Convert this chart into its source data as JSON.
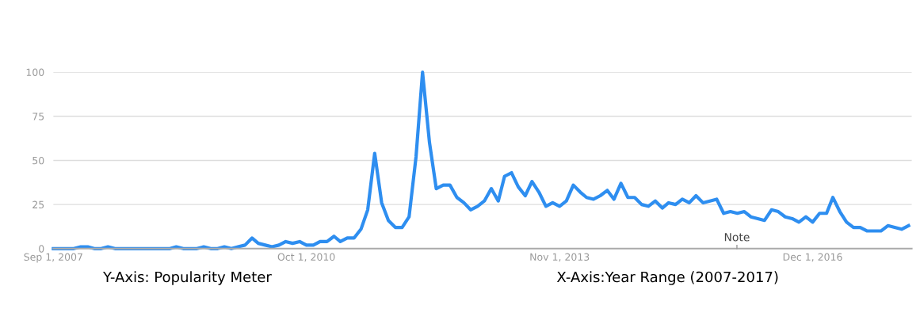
{
  "chart_data": {
    "type": "line",
    "x": [
      "2007-09",
      "2007-10",
      "2007-11",
      "2007-12",
      "2008-01",
      "2008-02",
      "2008-03",
      "2008-04",
      "2008-05",
      "2008-06",
      "2008-07",
      "2008-08",
      "2008-09",
      "2008-10",
      "2008-11",
      "2008-12",
      "2009-01",
      "2009-02",
      "2009-03",
      "2009-04",
      "2009-05",
      "2009-06",
      "2009-07",
      "2009-08",
      "2009-09",
      "2009-10",
      "2009-11",
      "2009-12",
      "2010-01",
      "2010-02",
      "2010-03",
      "2010-04",
      "2010-05",
      "2010-06",
      "2010-07",
      "2010-08",
      "2010-09",
      "2010-10",
      "2010-11",
      "2010-12",
      "2011-01",
      "2011-02",
      "2011-03",
      "2011-04",
      "2011-05",
      "2011-06",
      "2011-07",
      "2011-08",
      "2011-09",
      "2011-10",
      "2011-11",
      "2011-12",
      "2012-01",
      "2012-02",
      "2012-03",
      "2012-04",
      "2012-05",
      "2012-06",
      "2012-07",
      "2012-08",
      "2012-09",
      "2012-10",
      "2012-11",
      "2012-12",
      "2013-01",
      "2013-02",
      "2013-03",
      "2013-04",
      "2013-05",
      "2013-06",
      "2013-07",
      "2013-08",
      "2013-09",
      "2013-10",
      "2013-11",
      "2013-12",
      "2014-01",
      "2014-02",
      "2014-03",
      "2014-04",
      "2014-05",
      "2014-06",
      "2014-07",
      "2014-08",
      "2014-09",
      "2014-10",
      "2014-11",
      "2014-12",
      "2015-01",
      "2015-02",
      "2015-03",
      "2015-04",
      "2015-05",
      "2015-06",
      "2015-07",
      "2015-08",
      "2015-09",
      "2015-10",
      "2015-11",
      "2015-12",
      "2016-01",
      "2016-02",
      "2016-03",
      "2016-04",
      "2016-05",
      "2016-06",
      "2016-07",
      "2016-08",
      "2016-09",
      "2016-10",
      "2016-11",
      "2016-12",
      "2017-01",
      "2017-02",
      "2017-03",
      "2017-04",
      "2017-05",
      "2017-06",
      "2017-07",
      "2017-08",
      "2017-09",
      "2017-10",
      "2017-11",
      "2017-12",
      "2018-01",
      "2018-02"
    ],
    "series": [
      {
        "color": "#2e8ef0",
        "values": [
          0,
          0,
          0,
          0,
          1,
          1,
          0,
          0,
          1,
          0,
          0,
          0,
          0,
          0,
          0,
          0,
          0,
          0,
          1,
          0,
          0,
          0,
          1,
          0,
          0,
          1,
          0,
          1,
          2,
          6,
          3,
          2,
          1,
          2,
          4,
          3,
          4,
          2,
          2,
          4,
          4,
          7,
          4,
          6,
          6,
          11,
          22,
          54,
          26,
          16,
          12,
          12,
          18,
          52,
          100,
          60,
          34,
          36,
          36,
          29,
          26,
          22,
          24,
          27,
          34,
          27,
          41,
          43,
          35,
          30,
          38,
          32,
          24,
          26,
          24,
          27,
          36,
          32,
          29,
          28,
          30,
          33,
          28,
          37,
          29,
          29,
          25,
          24,
          27,
          23,
          26,
          25,
          28,
          26,
          30,
          26,
          27,
          28,
          20,
          21,
          20,
          21,
          18,
          17,
          16,
          22,
          21,
          18,
          17,
          15,
          18,
          15,
          20,
          20,
          29,
          21,
          15,
          12,
          12,
          10,
          10,
          10,
          13,
          12,
          11,
          13
        ]
      }
    ],
    "xlim": [
      "2007-09-01",
      "2018-02-15"
    ],
    "xticks": [
      {
        "value": "2007-09-01",
        "label": "Sep 1, 2007"
      },
      {
        "value": "2010-10-01",
        "label": "Oct 1, 2010"
      },
      {
        "value": "2013-11-01",
        "label": "Nov 1, 2013"
      },
      {
        "value": "2016-12-01",
        "label": "Dec 1, 2016"
      }
    ],
    "ylim": [
      0,
      100
    ],
    "yticks": [
      0,
      25,
      50,
      75,
      100
    ],
    "grid": "y",
    "marker": "none",
    "line_style": "solid",
    "annotations": [
      "Note",
      "Y-Axis: Popularity Meter",
      "X-Axis:Year Range (2007-2017)"
    ]
  }
}
